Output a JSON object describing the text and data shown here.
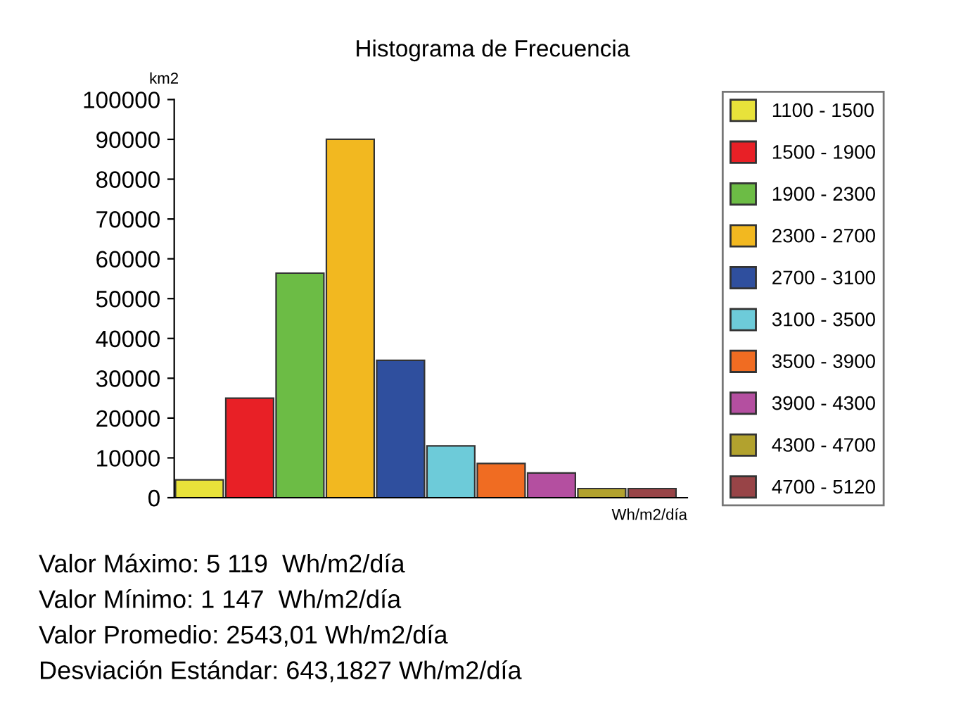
{
  "chart_data": {
    "type": "bar",
    "title": "Histograma de Frecuencia",
    "ylabel": "km2",
    "xlabel": "Wh/m2/día",
    "categories": [
      null,
      null,
      null,
      null,
      null,
      null,
      null,
      null,
      null,
      null
    ],
    "series": [
      {
        "name": "1100 - 1500",
        "color": "#e8e23a",
        "values": [
          4500,
          null,
          null,
          null,
          null,
          null,
          null,
          null,
          null,
          null
        ]
      },
      {
        "name": "1500 - 1900",
        "color": "#e82026",
        "values": [
          null,
          25000,
          null,
          null,
          null,
          null,
          null,
          null,
          null,
          null
        ]
      },
      {
        "name": "1900 - 2300",
        "color": "#6cbc45",
        "values": [
          null,
          null,
          56400,
          null,
          null,
          null,
          null,
          null,
          null,
          null
        ]
      },
      {
        "name": "2300 - 2700",
        "color": "#f2b820",
        "values": [
          null,
          null,
          null,
          90000,
          null,
          null,
          null,
          null,
          null,
          null
        ]
      },
      {
        "name": "2700 - 3100",
        "color": "#2f4f9e",
        "values": [
          null,
          null,
          null,
          null,
          34500,
          null,
          null,
          null,
          null,
          null
        ]
      },
      {
        "name": "3100 - 3500",
        "color": "#6dcbd9",
        "values": [
          null,
          null,
          null,
          null,
          null,
          13000,
          null,
          null,
          null,
          null
        ]
      },
      {
        "name": "3500 - 3900",
        "color": "#f06c22",
        "values": [
          null,
          null,
          null,
          null,
          null,
          null,
          8600,
          null,
          null,
          null
        ]
      },
      {
        "name": "3900 - 4300",
        "color": "#b44fa0",
        "values": [
          null,
          null,
          null,
          null,
          null,
          null,
          null,
          6200,
          null,
          null
        ]
      },
      {
        "name": "4300 - 4700",
        "color": "#b2a22e",
        "values": [
          null,
          null,
          null,
          null,
          null,
          null,
          null,
          null,
          2300,
          null
        ]
      },
      {
        "name": "4700 - 5120",
        "color": "#984447",
        "values": [
          null,
          null,
          null,
          null,
          null,
          null,
          null,
          null,
          null,
          2300
        ]
      }
    ],
    "ylim": [
      0,
      100000
    ],
    "yticks": [
      0,
      10000,
      20000,
      30000,
      40000,
      50000,
      60000,
      70000,
      80000,
      90000,
      100000
    ],
    "legend": "right",
    "tick_labels": "y",
    "annotations": [
      "Valor Máximo: 5 119  Wh/m2/día",
      "Valor Mínimo: 1 147  Wh/m2/día",
      "Valor Promedio: 2543,01 Wh/m2/día",
      "Desviación Estándar: 643,1827 Wh/m2/día"
    ]
  }
}
